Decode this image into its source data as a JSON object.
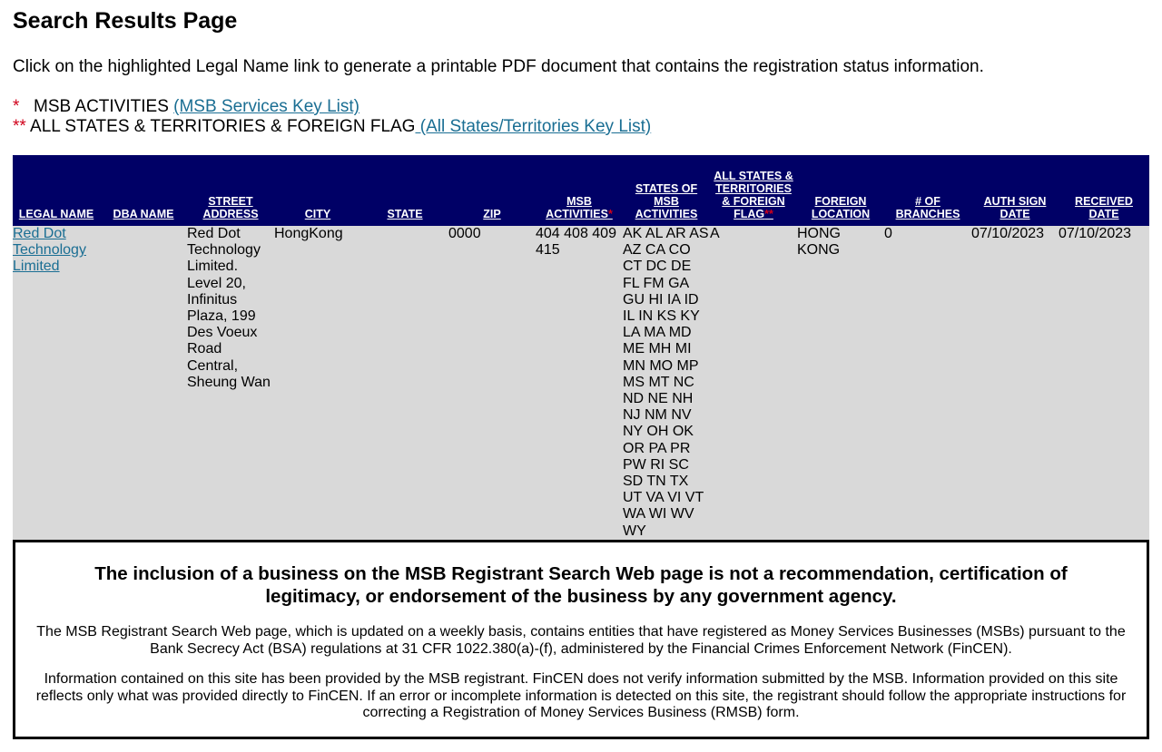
{
  "page": {
    "title": "Search Results Page",
    "intro": "Click on the highlighted Legal Name link to generate a printable PDF document that contains the registration status information."
  },
  "keys": {
    "msb_star": "*",
    "msb_label": "MSB ACTIVITIES ",
    "msb_link": "(MSB Services Key List)",
    "states_star": "**",
    "states_label": " ALL STATES & TERRITORIES & FOREIGN FLAG",
    "states_link": " (All States/Territories Key List)"
  },
  "table": {
    "headers": {
      "legal_name": "LEGAL NAME",
      "dba_name": "DBA NAME",
      "street_address": "STREET ADDRESS",
      "city": "CITY",
      "state": "STATE",
      "zip": "ZIP",
      "msb_activities": "MSB ACTIVITIES",
      "msb_activities_star": "*",
      "states_of_msb": "STATES OF MSB ACTIVITIES",
      "all_states": "ALL STATES & TERRITORIES & FOREIGN FLAG",
      "all_states_star": "**",
      "foreign_location": "FOREIGN LOCATION",
      "branches": "# OF BRANCHES",
      "auth_sign_date": "AUTH SIGN DATE",
      "received_date": "RECEIVED DATE"
    },
    "rows": [
      {
        "legal_name": "Red Dot Technology Limited",
        "dba_name": "",
        "street_address": "Red Dot Technology Limited. Level 20, Infinitus Plaza, 199 Des Voeux Road Central, Sheung Wan",
        "city": "HongKong",
        "state": "",
        "zip": "0000",
        "msb_activities": "404 408 409 415",
        "states_of_msb": "AK AL AR AS AZ CA CO CT DC DE FL FM GA GU HI IA ID IL IN KS KY LA MA MD ME MH MI MN MO MP MS MT NC ND NE NH NJ NM NV NY OH OK OR PA PR PW RI SC SD TN TX UT VA VI VT WA WI WV WY",
        "all_states": "A",
        "foreign_location": "HONG KONG",
        "branches": "0",
        "auth_sign_date": "07/10/2023",
        "received_date": "07/10/2023"
      }
    ]
  },
  "disclaimer": {
    "heading": "The inclusion of a business on the MSB Registrant Search Web page is not a recommendation, certification of legitimacy, or endorsement of the business by any government agency.",
    "paragraph1": "The MSB Registrant Search Web page, which is updated on a weekly basis, contains entities that have registered as Money Services Businesses (MSBs) pursuant to the Bank Secrecy Act (BSA) regulations at 31 CFR 1022.380(a)-(f), administered by the Financial Crimes Enforcement Network (FinCEN).",
    "paragraph2": "Information contained on this site has been provided by the MSB registrant. FinCEN does not verify information submitted by the MSB. Information provided on this site reflects only what was provided directly to FinCEN. If an error or incomplete information is detected on this site, the registrant should follow the appropriate instructions for correcting a Registration of Money Services Business (RMSB) form."
  },
  "colors": {
    "header_bg": "#000066",
    "row_bg": "#d9d9d9",
    "link": "#1a6e93",
    "star": "#d0021b"
  }
}
